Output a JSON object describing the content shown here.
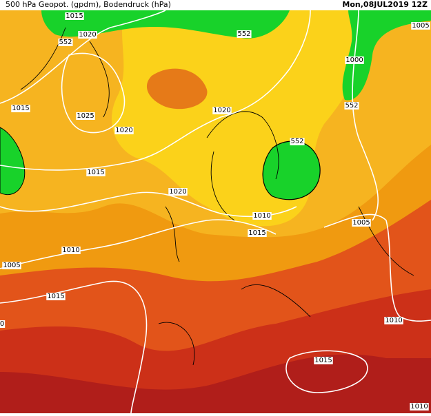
{
  "header": {
    "title": "500 hPa Geopot. (gpdm), Bodendruck (hPa)",
    "date": "Mon,08JUL2019 12Z"
  },
  "labels": [
    "1015",
    "1020",
    "552",
    "552",
    "1005",
    "1000",
    "552",
    "1015",
    "1025",
    "1020",
    "1020",
    "552",
    "1015",
    "1020",
    "1010",
    "1005",
    "1015",
    "1010",
    "1005",
    "1015",
    "0",
    "1010",
    "1015",
    "1010"
  ]
}
